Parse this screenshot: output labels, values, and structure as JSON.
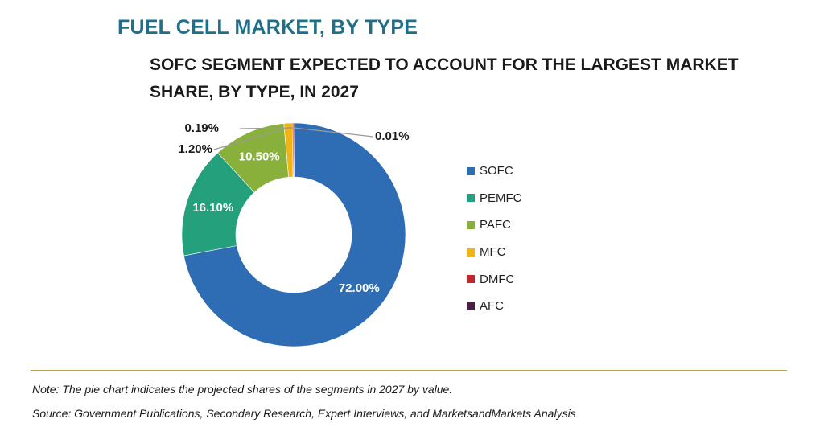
{
  "title": "FUEL CELL MARKET, BY TYPE",
  "subtitle": "SOFC SEGMENT EXPECTED TO ACCOUNT FOR THE LARGEST MARKET SHARE, BY TYPE, IN 2027",
  "note": "Note: The pie chart indicates the projected shares of the segments in 2027 by value.",
  "source": "Source: Government Publications, Secondary Research, Expert Interviews, and MarketsandMarkets Analysis",
  "chart_data": {
    "type": "pie",
    "donut": true,
    "categories": [
      "SOFC",
      "PEMFC",
      "PAFC",
      "MFC",
      "DMFC",
      "AFC"
    ],
    "values": [
      72.0,
      16.1,
      10.5,
      1.2,
      0.19,
      0.01
    ],
    "labels": [
      "72.00%",
      "16.10%",
      "10.50%",
      "1.20%",
      "0.19%",
      "0.01%"
    ],
    "colors": [
      "#2e6db4",
      "#25a07d",
      "#88b03a",
      "#f1b417",
      "#c0262d",
      "#4a1f47"
    ],
    "legend_position": "right"
  }
}
